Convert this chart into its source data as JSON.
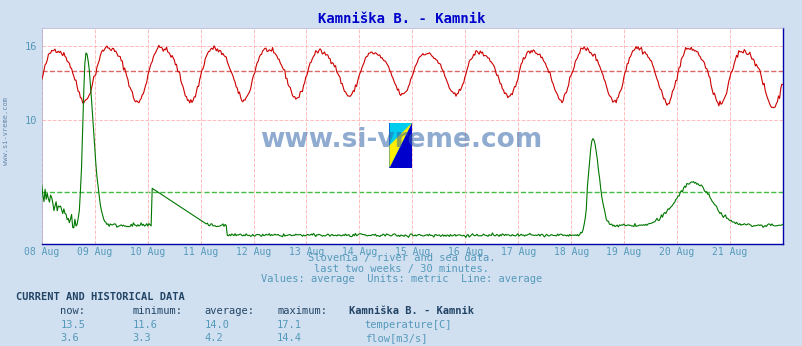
{
  "title": "Kamniška B. - Kamnik",
  "title_color": "#0000cc",
  "bg_color": "#d0e0f0",
  "plot_bg_color": "#ffffff",
  "x_labels": [
    "08 Aug",
    "09 Aug",
    "10 Aug",
    "11 Aug",
    "12 Aug",
    "13 Aug",
    "14 Aug",
    "15 Aug",
    "16 Aug",
    "17 Aug",
    "18 Aug",
    "19 Aug",
    "20 Aug",
    "21 Aug"
  ],
  "y_min": 0,
  "y_max": 17.5,
  "y_ticks": [
    10,
    16
  ],
  "temp_avg": 14.0,
  "flow_avg": 4.2,
  "temp_color": "#cc0000",
  "flow_color": "#007700",
  "avg_line_color_temp": "#dd6666",
  "avg_line_color_flow": "#44bb44",
  "grid_color": "#ffbbbb",
  "grid_color_y": "#ffbbbb",
  "subtitle1": "Slovenia / river and sea data.",
  "subtitle2": "last two weeks / 30 minutes.",
  "subtitle3": "Values: average  Units: metric  Line: average",
  "subtitle_color": "#5599bb",
  "watermark": "www.si-vreme.com",
  "watermark_color": "#1155aa",
  "label_color": "#5599bb",
  "footer_header": "CURRENT AND HISTORICAL DATA",
  "footer_cols": [
    "now:",
    "minimum:",
    "average:",
    "maximum:",
    "Kamniška B. - Kamnik"
  ],
  "footer_temp": [
    "13.5",
    "11.6",
    "14.0",
    "17.1"
  ],
  "footer_flow": [
    "3.6",
    "3.3",
    "4.2",
    "14.4"
  ],
  "footer_label_temp": "temperature[C]",
  "footer_label_flow": "flow[m3/s]",
  "n_points": 672,
  "logo_yellow": "#ffee00",
  "logo_cyan": "#00ccee",
  "logo_blue": "#0000cc"
}
